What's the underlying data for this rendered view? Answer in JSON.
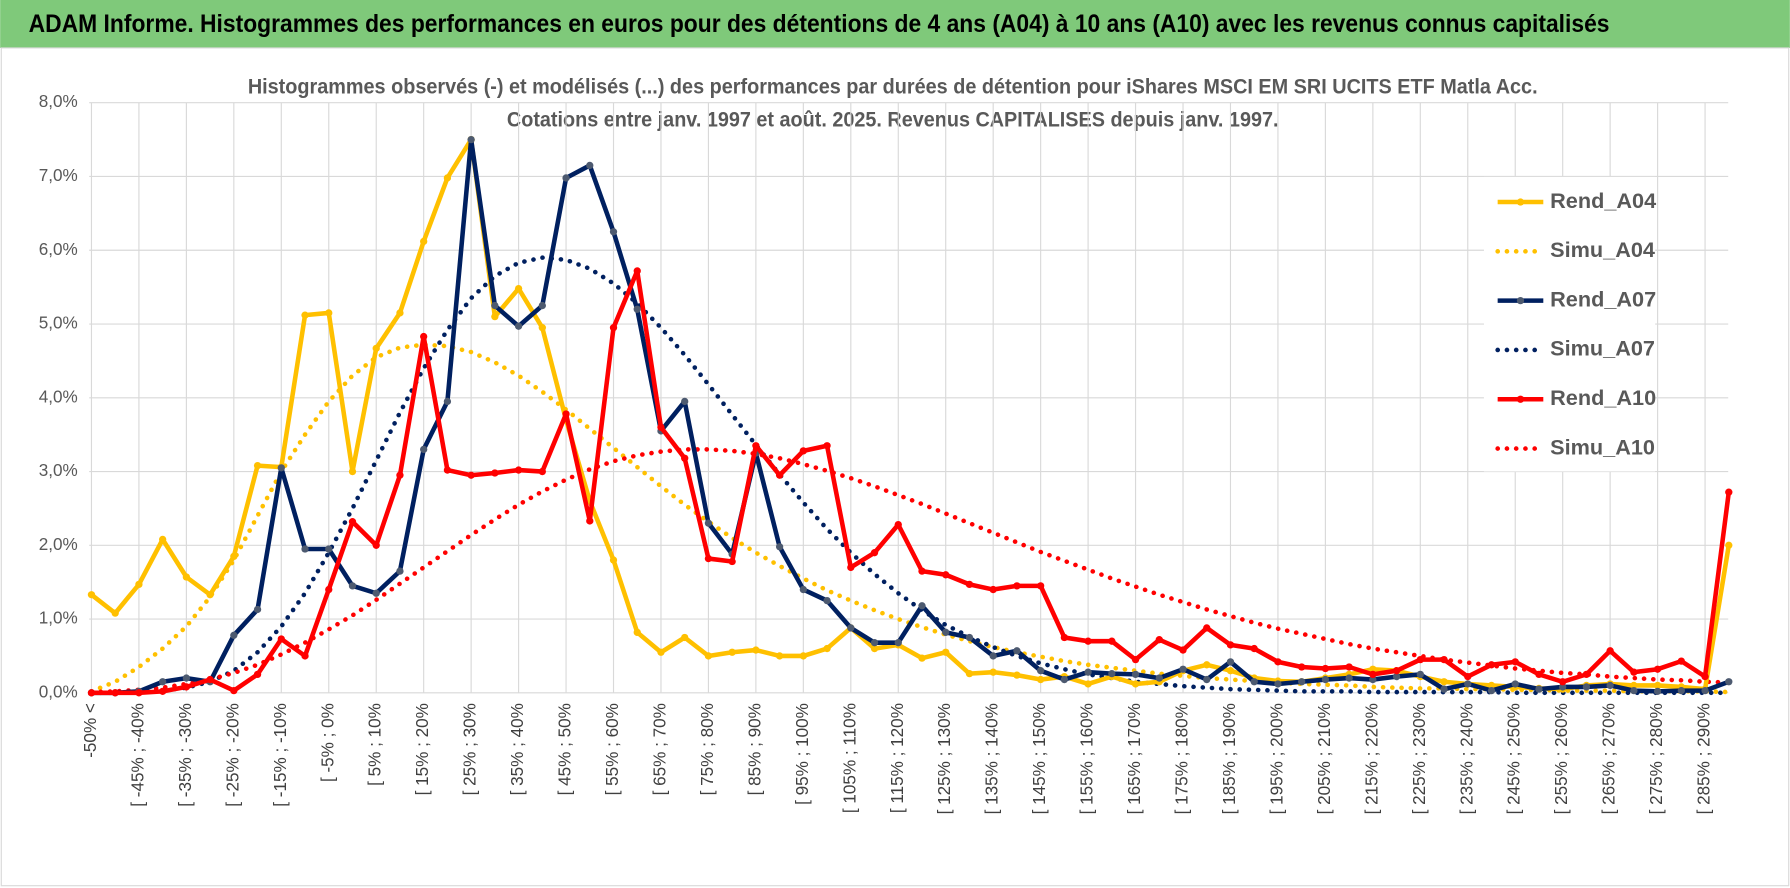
{
  "header": {
    "title": "ADAM Informe. Histogrammes des performances en euros pour des détentions de 4 ans (A04) à 10 ans (A10) avec les revenus connus capitalisés"
  },
  "chart_data": {
    "type": "line",
    "title": [
      "Histogrammes observés (-) et modélisés (...) des performances par durées de détention pour iShares MSCI EM SRI UCITS ETF Matla Acc.",
      "Cotations entre janv. 1997 et août. 2025. Revenus CAPITALISES depuis janv. 1997."
    ],
    "categories": [
      "-50% <",
      null,
      "[ -45% ; -40%",
      null,
      "[ -35% ; -30%",
      null,
      "[ -25% ; -20%",
      null,
      "[ -15% ; -10%",
      null,
      "[ -5% ; 0%",
      null,
      "[ 5% ; 10%",
      null,
      "[ 15% ; 20%",
      null,
      "[ 25% ; 30%",
      null,
      "[ 35% ; 40%",
      null,
      "[ 45% ; 50%",
      null,
      "[ 55% ; 60%",
      null,
      "[ 65% ; 70%",
      null,
      "[ 75% ; 80%",
      null,
      "[ 85% ; 90%",
      null,
      "[ 95% ; 100%",
      null,
      "[ 105% ; 110%",
      null,
      "[ 115% ; 120%",
      null,
      "[ 125% ; 130%",
      null,
      "[ 135% ; 140%",
      null,
      "[ 145% ; 150%",
      null,
      "[ 155% ; 160%",
      null,
      "[ 165% ; 170%",
      null,
      "[ 175% ; 180%",
      null,
      "[ 185% ; 190%",
      null,
      "[ 195% ; 200%",
      null,
      "[ 205% ; 210%",
      null,
      "[ 215% ; 220%",
      null,
      "[ 225% ; 230%",
      null,
      "[ 235% ; 240%",
      null,
      "[ 245% ; 250%",
      null,
      "[ 255% ; 260%",
      null,
      "[ 265% ; 270%",
      null,
      "[ 275% ; 280%",
      null,
      "[ 285% ; 290%",
      null
    ],
    "ylim": [
      0,
      8
    ],
    "yticks": [
      {
        "value": 0,
        "label": "0,0%"
      },
      {
        "value": 1,
        "label": "1,0%"
      },
      {
        "value": 2,
        "label": "2,0%"
      },
      {
        "value": 3,
        "label": "3,0%"
      },
      {
        "value": 4,
        "label": "4,0%"
      },
      {
        "value": 5,
        "label": "5,0%"
      },
      {
        "value": 6,
        "label": "6,0%"
      },
      {
        "value": 7,
        "label": "7,0%"
      },
      {
        "value": 8,
        "label": "8,0%"
      }
    ],
    "grid": true,
    "legend": "right",
    "series": [
      {
        "name": "Rend_A04",
        "color": "#ffc000",
        "dotted": false,
        "values": [
          1.33,
          1.08,
          1.47,
          2.08,
          1.57,
          1.33,
          1.85,
          3.08,
          3.06,
          5.12,
          5.15,
          3.0,
          4.67,
          5.15,
          6.12,
          6.98,
          7.5,
          5.1,
          5.48,
          4.95,
          3.7,
          2.6,
          1.8,
          0.82,
          0.55,
          0.75,
          0.5,
          0.55,
          0.58,
          0.5,
          0.5,
          0.6,
          0.88,
          0.6,
          0.65,
          0.47,
          0.55,
          0.26,
          0.28,
          0.24,
          0.18,
          0.22,
          0.12,
          0.22,
          0.12,
          0.15,
          0.3,
          0.38,
          0.3,
          0.2,
          0.16,
          0.15,
          0.2,
          0.25,
          0.32,
          0.3,
          0.22,
          0.15,
          0.12,
          0.1,
          0.08,
          0.06,
          0.05,
          0.1,
          0.12,
          0.1,
          0.1,
          0.08,
          0.05,
          2.0
        ]
      },
      {
        "name": "Simu_A04",
        "color": "#ffc000",
        "dotted": true,
        "values": [
          0.02,
          0.15,
          0.35,
          0.6,
          0.9,
          1.3,
          1.8,
          2.4,
          3.0,
          3.5,
          3.95,
          4.3,
          4.55,
          4.68,
          4.72,
          4.7,
          4.62,
          4.48,
          4.3,
          4.08,
          3.84,
          3.58,
          3.32,
          3.06,
          2.8,
          2.55,
          2.32,
          2.1,
          1.9,
          1.72,
          1.55,
          1.39,
          1.25,
          1.12,
          1.0,
          0.89,
          0.79,
          0.7,
          0.62,
          0.55,
          0.49,
          0.43,
          0.38,
          0.34,
          0.3,
          0.26,
          0.23,
          0.2,
          0.18,
          0.16,
          0.14,
          0.12,
          0.11,
          0.1,
          0.08,
          0.07,
          0.06,
          0.06,
          0.05,
          0.05,
          0.04,
          0.04,
          0.03,
          0.03,
          0.03,
          0.02,
          0.02,
          0.02,
          0.02,
          0.01
        ]
      },
      {
        "name": "Rend_A07",
        "color": "#002060",
        "dotted": false,
        "marker": "#4d5a70",
        "values": [
          0,
          0,
          0.02,
          0.15,
          0.2,
          0.15,
          0.78,
          1.13,
          3.05,
          1.95,
          1.95,
          1.45,
          1.35,
          1.65,
          3.3,
          3.95,
          7.5,
          5.25,
          4.97,
          5.25,
          6.98,
          7.15,
          6.25,
          5.2,
          3.55,
          3.95,
          2.3,
          1.88,
          3.25,
          1.98,
          1.4,
          1.25,
          0.88,
          0.68,
          0.68,
          1.18,
          0.82,
          0.75,
          0.5,
          0.57,
          0.3,
          0.18,
          0.28,
          0.26,
          0.25,
          0.2,
          0.32,
          0.18,
          0.42,
          0.15,
          0.12,
          0.15,
          0.18,
          0.2,
          0.18,
          0.22,
          0.25,
          0.05,
          0.12,
          0.03,
          0.12,
          0.05,
          0.08,
          0.08,
          0.1,
          0.03,
          0.02,
          0.03,
          0.03,
          0.15
        ]
      },
      {
        "name": "Simu_A07",
        "color": "#002060",
        "dotted": true,
        "values": [
          0,
          0,
          0.01,
          0.03,
          0.07,
          0.15,
          0.3,
          0.55,
          0.9,
          1.35,
          1.9,
          2.5,
          3.15,
          3.8,
          4.4,
          4.92,
          5.35,
          5.65,
          5.83,
          5.9,
          5.87,
          5.75,
          5.55,
          5.28,
          4.95,
          4.58,
          4.18,
          3.77,
          3.36,
          2.96,
          2.58,
          2.22,
          1.9,
          1.61,
          1.35,
          1.12,
          0.92,
          0.76,
          0.62,
          0.5,
          0.4,
          0.32,
          0.25,
          0.2,
          0.15,
          0.12,
          0.09,
          0.07,
          0.05,
          0.04,
          0.03,
          0.02,
          0.02,
          0.02,
          0.01,
          0.01,
          0.01,
          0.01,
          0.01,
          0.01,
          0,
          0,
          0,
          0,
          0,
          0,
          0,
          0,
          0,
          0
        ]
      },
      {
        "name": "Rend_A10",
        "color": "#ff0000",
        "dotted": false,
        "values": [
          0,
          0,
          0,
          0.02,
          0.08,
          0.18,
          0.03,
          0.25,
          0.73,
          0.5,
          1.4,
          2.32,
          2.0,
          2.95,
          4.83,
          3.02,
          2.95,
          2.98,
          3.02,
          3.0,
          3.78,
          2.33,
          4.95,
          5.72,
          3.6,
          3.18,
          1.82,
          1.78,
          3.35,
          2.95,
          3.28,
          3.35,
          1.7,
          1.9,
          2.28,
          1.65,
          1.6,
          1.47,
          1.4,
          1.45,
          1.45,
          0.75,
          0.7,
          0.7,
          0.45,
          0.72,
          0.58,
          0.88,
          0.65,
          0.6,
          0.42,
          0.35,
          0.33,
          0.35,
          0.25,
          0.3,
          0.45,
          0.45,
          0.22,
          0.38,
          0.42,
          0.25,
          0.15,
          0.25,
          0.57,
          0.28,
          0.32,
          0.43,
          0.22,
          2.72
        ]
      },
      {
        "name": "Simu_A10",
        "color": "#ff0000",
        "dotted": true,
        "values": [
          0.01,
          0.02,
          0.04,
          0.07,
          0.12,
          0.18,
          0.27,
          0.38,
          0.52,
          0.68,
          0.86,
          1.05,
          1.26,
          1.48,
          1.7,
          1.92,
          2.14,
          2.35,
          2.55,
          2.73,
          2.89,
          3.03,
          3.14,
          3.22,
          3.27,
          3.3,
          3.3,
          3.28,
          3.24,
          3.18,
          3.1,
          3.01,
          2.91,
          2.8,
          2.68,
          2.56,
          2.43,
          2.3,
          2.17,
          2.04,
          1.91,
          1.79,
          1.67,
          1.55,
          1.44,
          1.33,
          1.23,
          1.13,
          1.04,
          0.95,
          0.87,
          0.8,
          0.73,
          0.66,
          0.6,
          0.55,
          0.5,
          0.45,
          0.41,
          0.37,
          0.33,
          0.3,
          0.27,
          0.25,
          0.22,
          0.2,
          0.18,
          0.17,
          0.15,
          0.14
        ]
      }
    ]
  }
}
